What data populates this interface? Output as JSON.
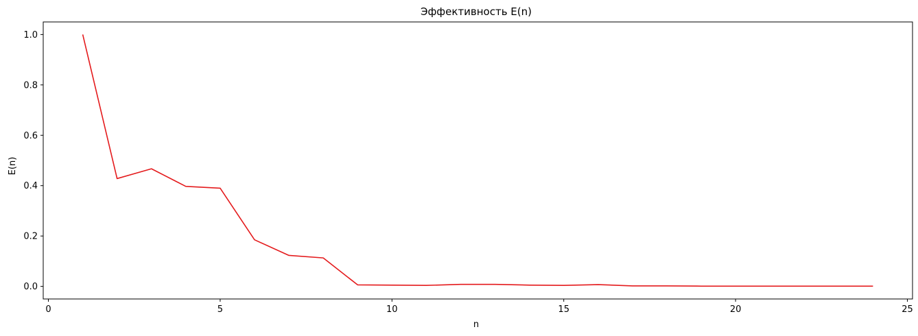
{
  "chart_data": {
    "type": "line",
    "title": "Эффективность E(n)",
    "xlabel": "n",
    "ylabel": "E(n)",
    "xlim": [
      -0.15,
      25.15
    ],
    "ylim": [
      -0.05,
      1.05
    ],
    "xticks": [
      0,
      5,
      10,
      15,
      20,
      25
    ],
    "yticks": [
      0.0,
      0.2,
      0.4,
      0.6,
      0.8,
      1.0
    ],
    "xtick_labels": [
      "0",
      "5",
      "10",
      "15",
      "20",
      "25"
    ],
    "ytick_labels": [
      "0.0",
      "0.2",
      "0.4",
      "0.6",
      "0.8",
      "1.0"
    ],
    "grid": false,
    "series": [
      {
        "color": "#e41a1c",
        "x": [
          1,
          2,
          3,
          4,
          5,
          6,
          7,
          8,
          9,
          10,
          11,
          12,
          13,
          14,
          15,
          16,
          17,
          18,
          19,
          20,
          21,
          22,
          23,
          24
        ],
        "y": [
          1.0,
          0.428,
          0.467,
          0.397,
          0.39,
          0.185,
          0.123,
          0.113,
          0.006,
          0.005,
          0.004,
          0.008,
          0.008,
          0.005,
          0.004,
          0.007,
          0.002,
          0.002,
          0.001,
          0.001,
          0.001,
          0.001,
          0.001,
          0.001
        ]
      }
    ]
  }
}
